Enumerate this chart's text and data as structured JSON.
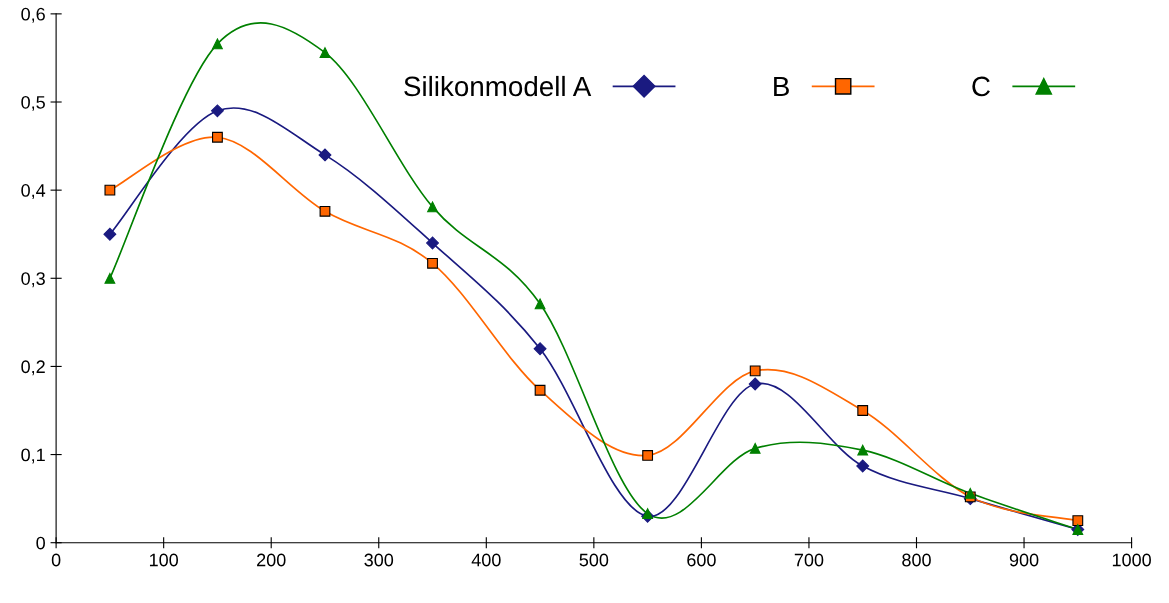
{
  "chart_data": {
    "type": "line",
    "x": [
      50,
      150,
      250,
      350,
      450,
      550,
      650,
      750,
      850,
      950
    ],
    "series": [
      {
        "name": "Silikonmodell A",
        "color": "#1a1a80",
        "marker": "diamond",
        "values": [
          0.35,
          0.49,
          0.44,
          0.34,
          0.22,
          0.03,
          0.18,
          0.087,
          0.05,
          0.015
        ]
      },
      {
        "name": "B",
        "color": "#ff6600",
        "marker": "square",
        "values": [
          0.4,
          0.46,
          0.376,
          0.317,
          0.173,
          0.099,
          0.195,
          0.15,
          0.052,
          0.025
        ]
      },
      {
        "name": "C",
        "color": "#008000",
        "marker": "triangle",
        "values": [
          0.3,
          0.566,
          0.556,
          0.381,
          0.271,
          0.033,
          0.107,
          0.105,
          0.056,
          0.015
        ]
      }
    ],
    "xlim": [
      0,
      1000
    ],
    "xticks": [
      0,
      100,
      200,
      300,
      400,
      500,
      600,
      700,
      800,
      900,
      1000
    ],
    "ylim": [
      0,
      0.6
    ],
    "yticks": [
      {
        "value": 0,
        "label": "0"
      },
      {
        "value": 0.1,
        "label": "0,1"
      },
      {
        "value": 0.2,
        "label": "0,2"
      },
      {
        "value": 0.3,
        "label": "0,3"
      },
      {
        "value": 0.4,
        "label": "0,4"
      },
      {
        "value": 0.5,
        "label": "0,5"
      },
      {
        "value": 0.6,
        "label": "0,6"
      }
    ],
    "grid": false,
    "legend": "top right",
    "line_style": "solid"
  }
}
